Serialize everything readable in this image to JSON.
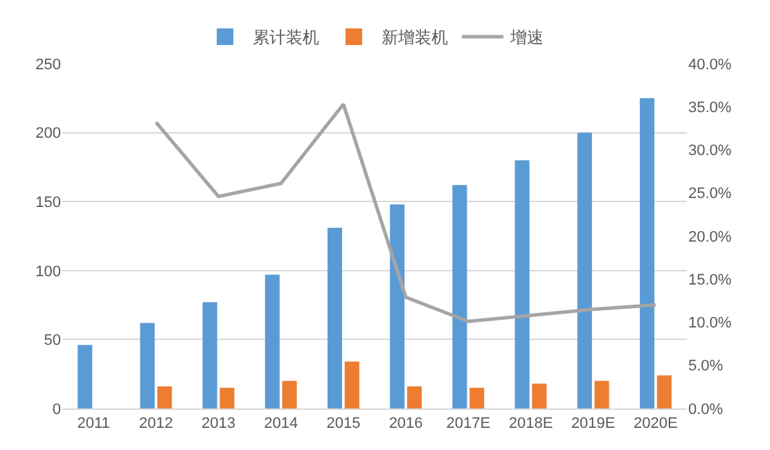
{
  "chart_data": {
    "type": "bar",
    "categories": [
      "2011",
      "2012",
      "2013",
      "2014",
      "2015",
      "2016",
      "2017E",
      "2018E",
      "2019E",
      "2020E"
    ],
    "series": [
      {
        "name": "累计装机",
        "color": "#5b9bd5",
        "values": [
          46,
          62,
          77,
          97,
          131,
          148,
          162,
          180,
          200,
          225
        ]
      },
      {
        "name": "新增装机",
        "color": "#ed7d31",
        "values": [
          null,
          16,
          15,
          20,
          34,
          16,
          15,
          18,
          20,
          24
        ]
      },
      {
        "name": "增速",
        "type": "line",
        "axis": "y2",
        "color": "#a5a5a5",
        "values": [
          null,
          0.332,
          0.246,
          0.261,
          0.353,
          0.129,
          0.101,
          0.108,
          0.115,
          0.12
        ]
      }
    ],
    "ylim": [
      0,
      250
    ],
    "yticks": [
      0,
      50,
      100,
      150,
      200,
      250
    ],
    "y2lim": [
      0,
      0.4
    ],
    "y2ticks": [
      {
        "value": 0,
        "label": "0.0%"
      },
      {
        "value": 0.05,
        "label": "5.0%"
      },
      {
        "value": 0.1,
        "label": "10.0%"
      },
      {
        "value": 0.15,
        "label": "15.0%"
      },
      {
        "value": 0.2,
        "label": "20.0%"
      },
      {
        "value": 0.25,
        "label": "25.0%"
      },
      {
        "value": 0.3,
        "label": "30.0%"
      },
      {
        "value": 0.35,
        "label": "35.0%"
      },
      {
        "value": 0.4,
        "label": "40.0%"
      }
    ],
    "grid": "y",
    "legend": "top",
    "marker": "none",
    "line_style": "solid"
  }
}
